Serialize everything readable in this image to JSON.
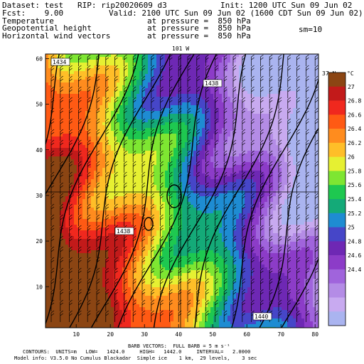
{
  "header": {
    "dataset_line": "Dataset: test   RIP: rip20020609 d3",
    "init_line": "Init: 1200 UTC Sun 09 Jun 02",
    "fcst_line": "Fcst:    9.00",
    "valid_line": "Valid: 2100 UTC Sun 09 Jun 02 (1600 CDT Sun 09 Jun 02)",
    "field1_name": "Temperature",
    "field1_level": "at pressure =  850 hPa",
    "field2_name": "Geopotential height",
    "field2_level": "at pressure =  850 hPa",
    "smoothing": "sm=10",
    "field3_name": "Horizontal wind vectors",
    "field3_level": "at pressure =  850 hPa"
  },
  "chart_data": {
    "type": "heatmap",
    "title": "",
    "x_range": [
      1,
      81
    ],
    "y_range": [
      1,
      61
    ],
    "x_ticks": [
      "10",
      "20",
      "30",
      "40",
      "50",
      "60",
      "70",
      "80"
    ],
    "y_ticks": [
      "10",
      "20",
      "30",
      "40",
      "50",
      "60"
    ],
    "meridian_label": "101 W",
    "parallel_label": "37 N",
    "colorbar": {
      "unit": "°C",
      "levels": [
        "27",
        "26.8",
        "26.6",
        "26.4",
        "26.2",
        "26",
        "25.8",
        "25.6",
        "25.4",
        "25.2",
        "25",
        "24.8",
        "24.6",
        "24.4"
      ],
      "colors": [
        "#8b4513",
        "#c21a1a",
        "#f0281e",
        "#ff5a14",
        "#ff8c1e",
        "#ffbe28",
        "#e6f032",
        "#7ee632",
        "#1ec850",
        "#14aa78",
        "#1e8cd2",
        "#4646c8",
        "#6e28b4",
        "#8c3cc8",
        "#a064dc",
        "#b48ce6",
        "#c8aaf0",
        "#aab4f0"
      ]
    },
    "height_contours": {
      "labels": [
        "1434",
        "1438",
        "1438",
        "1440"
      ],
      "units": "m",
      "low": "1424.0",
      "high": "1442.0",
      "interval": "2.0000"
    },
    "wind_barbs": {
      "full_barb_value": "5",
      "units": "m s⁻¹"
    }
  },
  "footer": {
    "barb_line": "BARB VECTORS:  FULL BARB = 5 m s⁻¹",
    "contour_line": "CONTOURS:  UNITS=m   LOW=   1424.0     HIGH=   1442.0     INTERVAL=   2.0000",
    "model_line": "Model info: V3.5.0 No Cumulus Blackadar  Simple ice    1 km,  29 levels,    3 sec"
  }
}
